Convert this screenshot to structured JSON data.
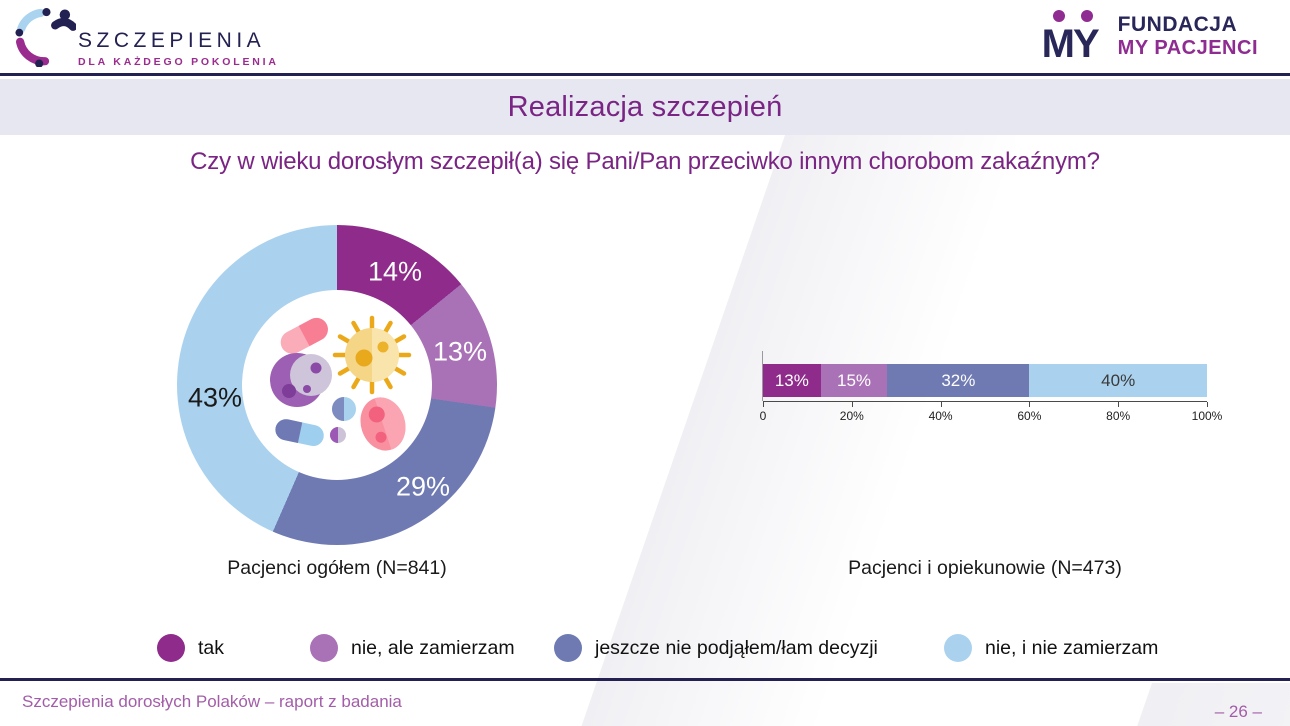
{
  "header": {
    "logo_left": {
      "line1": "SZCZEPIENIA",
      "line2": "DLA KAŻDEGO POKOLENIA"
    },
    "logo_right": {
      "glyph": "MY",
      "line1": "FUNDACJA",
      "line2": "MY PACJENCI"
    }
  },
  "title_bar": {
    "title": "Realizacja szczepień"
  },
  "question": "Czy w wieku dorosłym szczepił(a) się Pani/Pan przeciwko innym chorobom zakaźnym?",
  "colors": {
    "navy": "#232052",
    "title_purple": "#7A2483",
    "titlebar_bg": "#E6E7F1",
    "footer_purple": "#A35DA8",
    "series": [
      "#8E2B8B",
      "#AA72B6",
      "#6F7AB3",
      "#AAD2EE"
    ]
  },
  "chart_data": [
    {
      "type": "pie",
      "subtype": "donut",
      "title": "Pacjenci ogółem (N=841)",
      "categories": [
        "tak",
        "nie, ale zamierzam",
        "jeszcze nie podjąłem/łam decyzji",
        "nie, i nie zamierzam"
      ],
      "values": [
        14,
        13,
        29,
        43
      ],
      "labels": [
        "14%",
        "13%",
        "29%",
        "43%"
      ],
      "unit": "%",
      "start_angle_deg": 0,
      "direction": "clockwise",
      "center_illustration": "microbes-and-viruses"
    },
    {
      "type": "bar",
      "subtype": "stacked-horizontal",
      "title": "Pacjenci i opiekunowie (N=473)",
      "categories": [
        "tak",
        "nie, ale zamierzam",
        "jeszcze nie podjąłem/łam decyzji",
        "nie, i nie zamierzam"
      ],
      "values": [
        13,
        15,
        32,
        40
      ],
      "labels": [
        "13%",
        "15%",
        "32%",
        "40%"
      ],
      "unit": "%",
      "x_axis": {
        "range": [
          0,
          100
        ],
        "ticks": [
          "0",
          "20%",
          "40%",
          "60%",
          "80%",
          "100%"
        ]
      },
      "legend_position": "bottom"
    }
  ],
  "legend": {
    "items": [
      {
        "label": "tak"
      },
      {
        "label": "nie, ale zamierzam"
      },
      {
        "label": "jeszcze nie podjąłem/łam decyzji"
      },
      {
        "label": "nie, i nie zamierzam"
      }
    ]
  },
  "footer": {
    "left": "Szczepienia dorosłych Polaków – raport z badania",
    "page": "– 26 –"
  }
}
